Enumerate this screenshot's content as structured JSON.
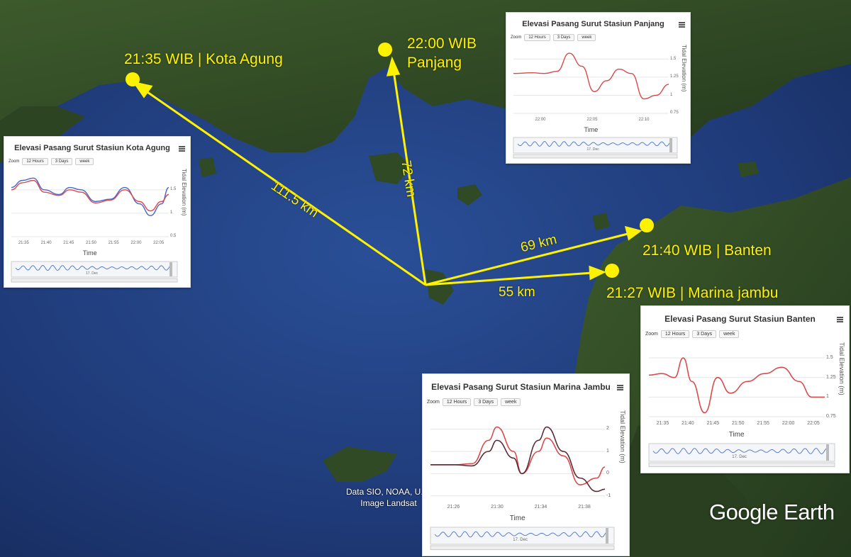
{
  "map": {
    "attribution_line1": "Data SIO, NOAA, U.S.",
    "attribution_line2": "Image Landsat",
    "brand": "Google Earth",
    "colors": {
      "sea": "#1f3a78",
      "land": "#2f4a24",
      "marker": "#fff200",
      "arrow": "#fff200"
    }
  },
  "stations": [
    {
      "id": "kota-agung",
      "label": "21:35 WIB | Kota Agung"
    },
    {
      "id": "panjang",
      "label_line1": "22:00 WIB",
      "label_line2": "Panjang"
    },
    {
      "id": "banten",
      "label": "21:40 WIB | Banten"
    },
    {
      "id": "marina-jambu",
      "label": "21:27 WIB | Marina jambu"
    }
  ],
  "distances": {
    "kota_agung": "111.5 km",
    "panjang": "72 km",
    "banten": "69 km",
    "marina_jambu": "55 km"
  },
  "chart_data": [
    {
      "type": "line",
      "id": "panjang",
      "title": "Elevasi Pasang Surut Stasiun Panjang",
      "zoom_label": "Zoom",
      "zoom_buttons": [
        "12 Hours",
        "3 Days",
        "week"
      ],
      "xlabel": "Time",
      "ylabel": "Tidal Elevation (m)",
      "x_ticks": [
        "22:00",
        "22:05",
        "22:10"
      ],
      "y_ticks": [
        "1.5",
        "1.25",
        "1",
        "0.75"
      ],
      "ylim": [
        0.75,
        1.6
      ],
      "navigator_label": "17. Dec",
      "series": [
        {
          "color": "#d84a4a",
          "points": [
            [
              21.93,
              1.3
            ],
            [
              21.96,
              1.31
            ],
            [
              21.98,
              1.3
            ],
            [
              22.0,
              1.33
            ],
            [
              22.02,
              1.58
            ],
            [
              22.04,
              1.4
            ],
            [
              22.06,
              1.05
            ],
            [
              22.08,
              1.2
            ],
            [
              22.1,
              1.36
            ],
            [
              22.12,
              1.3
            ],
            [
              22.14,
              0.95
            ],
            [
              22.16,
              1.0
            ],
            [
              22.18,
              1.15
            ]
          ]
        }
      ]
    },
    {
      "type": "line",
      "id": "kota-agung",
      "title": "Elevasi Pasang Surut Stasiun Kota Agung",
      "zoom_label": "Zoom",
      "zoom_buttons": [
        "12 Hours",
        "3 Days",
        "week"
      ],
      "xlabel": "Time",
      "ylabel": "Tidal Elevation (m)",
      "x_ticks": [
        "21:35",
        "21:40",
        "21:45",
        "21:50",
        "21:55",
        "22:00",
        "22:05"
      ],
      "y_ticks": [
        "1.5",
        "1",
        "0.5"
      ],
      "ylim": [
        0.5,
        1.8
      ],
      "navigator_label": "17. Dec",
      "series": [
        {
          "color": "#4a66d0",
          "points": [
            [
              0,
              1.55
            ],
            [
              3,
              1.7
            ],
            [
              6,
              1.75
            ],
            [
              9,
              1.5
            ],
            [
              13,
              1.4
            ],
            [
              16,
              1.55
            ],
            [
              19,
              1.5
            ],
            [
              23,
              1.25
            ],
            [
              27,
              1.3
            ],
            [
              31,
              1.55
            ],
            [
              35,
              1.2
            ],
            [
              38,
              0.95
            ],
            [
              41,
              1.2
            ],
            [
              43,
              1.55
            ]
          ]
        },
        {
          "color": "#d84a4a",
          "points": [
            [
              0,
              1.5
            ],
            [
              3,
              1.65
            ],
            [
              6,
              1.7
            ],
            [
              9,
              1.45
            ],
            [
              13,
              1.38
            ],
            [
              16,
              1.5
            ],
            [
              19,
              1.45
            ],
            [
              23,
              1.22
            ],
            [
              27,
              1.28
            ],
            [
              31,
              1.5
            ],
            [
              35,
              1.25
            ],
            [
              38,
              1.05
            ],
            [
              41,
              1.25
            ],
            [
              43,
              1.4
            ]
          ]
        }
      ]
    },
    {
      "type": "line",
      "id": "banten",
      "title": "Elevasi Pasang Surut Stasiun Banten",
      "zoom_label": "Zoom",
      "zoom_buttons": [
        "12 Hours",
        "3 Days",
        "week"
      ],
      "xlabel": "Time",
      "ylabel": "Tidal Elevation (m)",
      "x_ticks": [
        "21:35",
        "21:40",
        "21:45",
        "21:50",
        "21:55",
        "22:00",
        "22:05"
      ],
      "y_ticks": [
        "1.5",
        "1.25",
        "1",
        "0.75"
      ],
      "ylim": [
        0.75,
        1.6
      ],
      "navigator_label": "17. Dec",
      "series": [
        {
          "color": "#d84a4a",
          "points": [
            [
              0,
              1.28
            ],
            [
              3,
              1.3
            ],
            [
              6,
              1.25
            ],
            [
              8,
              1.5
            ],
            [
              10,
              1.2
            ],
            [
              13,
              0.8
            ],
            [
              16,
              1.25
            ],
            [
              19,
              1.05
            ],
            [
              23,
              1.2
            ],
            [
              27,
              1.3
            ],
            [
              31,
              1.38
            ],
            [
              35,
              1.2
            ],
            [
              38,
              1.0
            ],
            [
              41,
              1.0
            ]
          ]
        }
      ]
    },
    {
      "type": "line",
      "id": "marina-jambu",
      "title": "Elevasi Pasang Surut Stasiun Marina Jambu",
      "zoom_label": "Zoom",
      "zoom_buttons": [
        "12 Hours",
        "3 Days",
        "week"
      ],
      "xlabel": "Time",
      "ylabel": "Tidal Elevation (m)",
      "x_ticks": [
        "21:26",
        "21:30",
        "21:34",
        "21:38"
      ],
      "y_ticks": [
        "2",
        "1",
        "0",
        "-1"
      ],
      "ylim": [
        -1.2,
        2.5
      ],
      "navigator_label": "17. Dec",
      "series": [
        {
          "color": "#d84a4a",
          "points": [
            [
              21.22,
              0.4
            ],
            [
              21.25,
              0.4
            ],
            [
              21.27,
              0.45
            ],
            [
              21.29,
              1.5
            ],
            [
              21.3,
              2.1
            ],
            [
              21.32,
              1.0
            ],
            [
              21.33,
              0.0
            ],
            [
              21.35,
              1.0
            ],
            [
              21.36,
              1.6
            ],
            [
              21.38,
              0.8
            ],
            [
              21.4,
              -0.5
            ],
            [
              21.42,
              -0.2
            ],
            [
              21.43,
              0.3
            ]
          ]
        },
        {
          "color": "#5b2a34",
          "points": [
            [
              21.22,
              0.4
            ],
            [
              21.25,
              0.4
            ],
            [
              21.27,
              0.35
            ],
            [
              21.29,
              1.0
            ],
            [
              21.3,
              1.5
            ],
            [
              21.32,
              0.7
            ],
            [
              21.33,
              0.0
            ],
            [
              21.35,
              1.5
            ],
            [
              21.36,
              2.1
            ],
            [
              21.38,
              1.0
            ],
            [
              21.4,
              -0.2
            ],
            [
              21.42,
              -0.8
            ],
            [
              21.43,
              -0.7
            ]
          ]
        }
      ]
    }
  ]
}
